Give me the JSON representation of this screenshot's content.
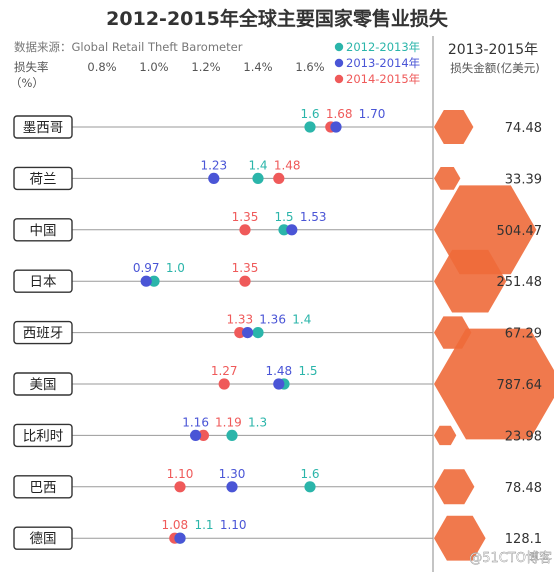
{
  "header": {
    "title": "2012-2015年全球主要国家零售业损失",
    "source": "数据来源：Global Retail Theft Barometer",
    "rate_label_line1": "损失率",
    "rate_label_line2": "（%）",
    "right_title": "2013-2015年",
    "right_subtitle": "损失金额(亿美元)"
  },
  "watermark": "@51CTO博客",
  "colors": {
    "s2012": "#2bb5aa",
    "s2013": "#4a55d6",
    "s2014": "#ef5a5a",
    "hexagon": "#ee6a3a",
    "text": "#333333",
    "divider": "#888888"
  },
  "chart_data": {
    "type": "scatter",
    "title": "2012-2015年全球主要国家零售业损失",
    "xlabel": "损失率（%）",
    "xlim": [
      0.6,
      1.6
    ],
    "x_ticks": [
      "0.8%",
      "1.0%",
      "1.2%",
      "1.4%",
      "1.6%"
    ],
    "x_tick_values": [
      0.8,
      1.0,
      1.2,
      1.4,
      1.6
    ],
    "categories": [
      "墨西哥",
      "荷兰",
      "中国",
      "日本",
      "西班牙",
      "美国",
      "比利时",
      "巴西",
      "德国"
    ],
    "series": [
      {
        "name": "2012-2013年",
        "color": "#2bb5aa",
        "values": [
          1.6,
          1.4,
          1.5,
          1.0,
          1.4,
          1.5,
          1.3,
          1.6,
          1.1
        ]
      },
      {
        "name": "2013-2014年",
        "color": "#4a55d6",
        "values": [
          1.7,
          1.23,
          1.53,
          0.97,
          1.36,
          1.48,
          1.16,
          1.3,
          1.1
        ]
      },
      {
        "name": "2014-2015年",
        "color": "#ef5a5a",
        "values": [
          1.68,
          1.48,
          1.35,
          1.35,
          1.33,
          1.27,
          1.19,
          1.1,
          1.08
        ]
      }
    ],
    "value_labels": [
      [
        "1.6",
        "1.70",
        "1.68"
      ],
      [
        "1.4",
        "1.23",
        "1.48"
      ],
      [
        "1.5",
        "1.53",
        "1.35"
      ],
      [
        "1.0",
        "0.97",
        "1.35"
      ],
      [
        "1.4",
        "1.36",
        "1.33"
      ],
      [
        "1.5",
        "1.48",
        "1.27"
      ],
      [
        "1.3",
        "1.16",
        "1.19"
      ],
      [
        "1.6",
        "1.30",
        "1.10"
      ],
      [
        "1.1",
        "1.10",
        "1.08"
      ]
    ],
    "loss_amounts": [
      74.48,
      33.39,
      504.47,
      251.48,
      67.29,
      787.64,
      23.98,
      78.48,
      128.1
    ],
    "loss_labels": [
      "74.48",
      "33.39",
      "504.47",
      "251.48",
      "67.29",
      "787.64",
      "23.98",
      "78.48",
      "128.1"
    ],
    "legend_position": "top-right"
  }
}
